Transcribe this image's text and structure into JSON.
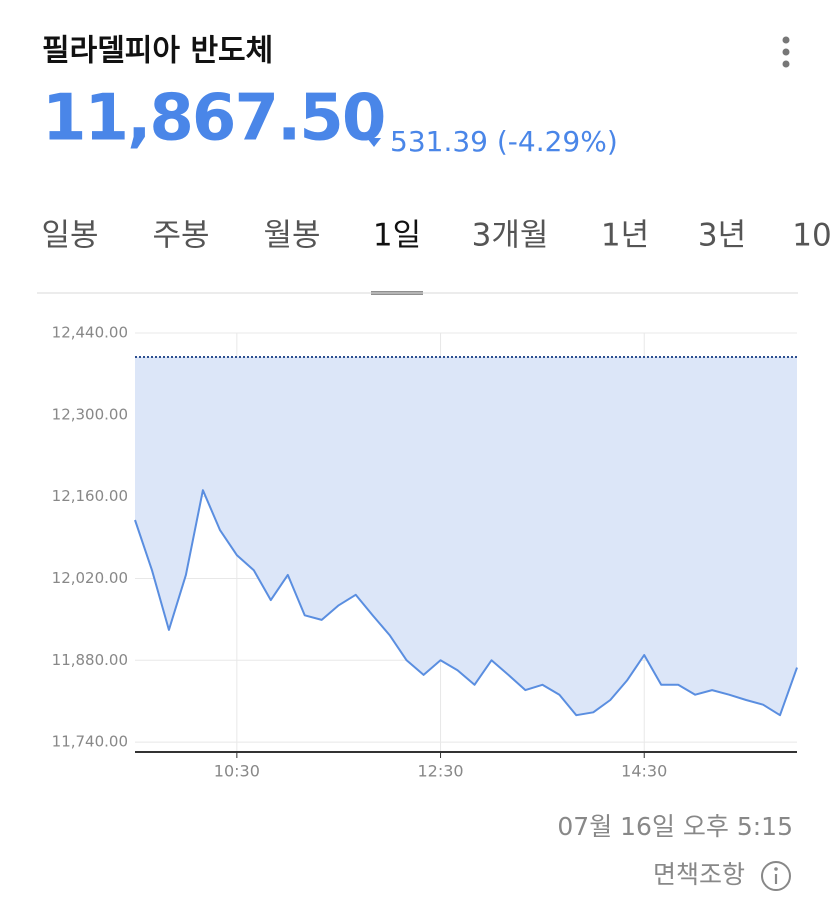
{
  "header": {
    "title": "필라델피아 반도체",
    "price": "11,867.50",
    "change": "531.39 (-4.29%)"
  },
  "tabs": {
    "items": [
      "일봉",
      "주봉",
      "월봉",
      "1일",
      "3개월",
      "1년",
      "3년",
      "10"
    ],
    "selected": 3
  },
  "chart_data": {
    "type": "line",
    "x": [
      "09:30",
      "09:40",
      "09:50",
      "10:00",
      "10:10",
      "10:20",
      "10:30",
      "10:40",
      "10:50",
      "11:00",
      "11:10",
      "11:20",
      "11:30",
      "11:40",
      "11:50",
      "12:00",
      "12:10",
      "12:20",
      "12:30",
      "12:40",
      "12:50",
      "13:00",
      "13:10",
      "13:20",
      "13:30",
      "13:40",
      "13:50",
      "14:00",
      "14:10",
      "14:20",
      "14:30",
      "14:40",
      "14:50",
      "15:00",
      "15:10",
      "15:20",
      "15:30",
      "15:40",
      "15:50",
      "16:00"
    ],
    "series": [
      {
        "color": "#5a8ee0",
        "values": [
          12120,
          12034,
          11932,
          12026,
          12171,
          12103,
          12060,
          12034,
          11983,
          12026,
          11957,
          11949,
          11974,
          11992,
          11957,
          11923,
          11880,
          11855,
          11880,
          11863,
          11838,
          11880,
          11855,
          11829,
          11838,
          11821,
          11786,
          11791,
          11812,
          11846,
          11889,
          11838,
          11838,
          11821,
          11829,
          11821,
          11812,
          11804,
          11786,
          11867.5
        ]
      }
    ],
    "reference_line": 12398.89,
    "xlim": [
      "09:30",
      "16:00"
    ],
    "xticks": [
      "10:30",
      "12:30",
      "14:30"
    ],
    "ylim": [
      11723,
      12440
    ],
    "yticks": [
      {
        "value": 12440,
        "label": "12,440.00"
      },
      {
        "value": 12300,
        "label": "12,300.00"
      },
      {
        "value": 12160,
        "label": "12,160.00"
      },
      {
        "value": 12020,
        "label": "12,020.00"
      },
      {
        "value": 11880,
        "label": "11,880.00"
      },
      {
        "value": 11740,
        "label": "11,740.00"
      }
    ],
    "grid": true
  },
  "footer": {
    "timestamp": "07월 16일 오후 5:15",
    "disclaimer": "면책조항"
  }
}
